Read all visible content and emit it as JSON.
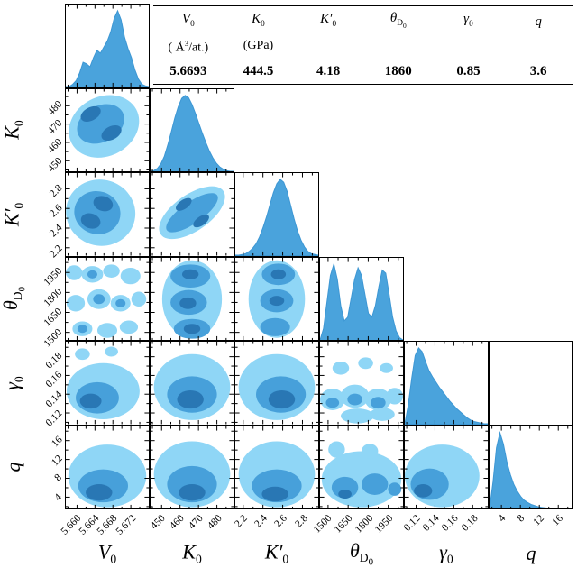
{
  "figure": {
    "background": "#ffffff",
    "frame_color": "#000000"
  },
  "table": {
    "headers": [
      {
        "html": "V<sub>0</sub>",
        "unit": "( Å<sup>3</sup>/at.)"
      },
      {
        "html": "K<sub>0</sub>",
        "unit": "(GPa)"
      },
      {
        "html": "K′<sub>0</sub>",
        "unit": ""
      },
      {
        "html": "θ<sub>D<sub>0</sub></sub>",
        "unit": ""
      },
      {
        "html": "γ<sub>0</sub>",
        "unit": ""
      },
      {
        "html": "q",
        "unit": ""
      }
    ],
    "values": [
      "5.6693",
      "444.5",
      "4.18",
      "1860",
      "0.85",
      "3.6"
    ]
  },
  "chart_data": {
    "type": "corner-plot",
    "description": "Corner plot of posterior distributions for equation-of-state parameters: 1D marginal densities on the diagonal, 2D filled density contours (3 levels) in the lower triangle, best-fit values in the top table.",
    "colors": {
      "fill": "#4aa3dc",
      "fill_edge": "#3d97d4",
      "contour_levels": [
        "#8fd6f6",
        "#47a0da",
        "#2977b4"
      ],
      "frame": "#000000"
    },
    "parameters": [
      {
        "key": "V0",
        "label": "V0",
        "label_html": "V<sub>0</sub>",
        "unit": "Å³/at.",
        "ticks": [
          5.66,
          5.664,
          5.668,
          5.672
        ],
        "tick_labels": [
          "5.660",
          "5.664",
          "5.668",
          "5.672"
        ],
        "range": [
          5.6575,
          5.676
        ],
        "best_fit": 5.6693
      },
      {
        "key": "K0",
        "label": "K0",
        "label_html": "K<sub>0</sub>",
        "unit": "GPa",
        "ticks": [
          450,
          460,
          470,
          480
        ],
        "tick_labels": [
          "450",
          "460",
          "470",
          "480"
        ],
        "range": [
          444,
          489
        ],
        "best_fit": 444.5
      },
      {
        "key": "K0p",
        "label": "K0'",
        "label_html": "K′<sub>0</sub>",
        "unit": "",
        "ticks": [
          2.2,
          2.4,
          2.6,
          2.8
        ],
        "tick_labels": [
          "2.2",
          "2.4",
          "2.6",
          "2.8"
        ],
        "range": [
          2.12,
          2.96
        ],
        "best_fit": 4.18
      },
      {
        "key": "thetaD0",
        "label": "θ_D0",
        "label_html": "θ<sub>D<sub>0</sub></sub>",
        "unit": "",
        "ticks": [
          1500,
          1650,
          1800,
          1950
        ],
        "tick_labels": [
          "1500",
          "1650",
          "1800",
          "1950"
        ],
        "range": [
          1440,
          2060
        ],
        "best_fit": 1860
      },
      {
        "key": "gamma0",
        "label": "γ0",
        "label_html": "γ<sub>0</sub>",
        "unit": "",
        "ticks": [
          0.12,
          0.14,
          0.16,
          0.18
        ],
        "tick_labels": [
          "0.12",
          "0.14",
          "0.16",
          "0.18"
        ],
        "range": [
          0.108,
          0.196
        ],
        "best_fit": 0.85
      },
      {
        "key": "q",
        "label": "q",
        "label_html": "q",
        "unit": "",
        "ticks": [
          4,
          8,
          12,
          16
        ],
        "tick_labels": [
          "4",
          "8",
          "12",
          "16"
        ],
        "range": [
          1.5,
          19
        ],
        "best_fit": 3.6
      }
    ],
    "diagonals": [
      {
        "param": "V0",
        "heights": [
          0,
          0,
          0.03,
          0.08,
          0.18,
          0.32,
          0.3,
          0.26,
          0.38,
          0.48,
          0.44,
          0.52,
          0.6,
          0.72,
          0.9,
          1.0,
          0.88,
          0.65,
          0.5,
          0.38,
          0.22,
          0.1,
          0.03,
          0.01,
          0
        ]
      },
      {
        "param": "K0",
        "heights": [
          0,
          0.01,
          0.04,
          0.1,
          0.2,
          0.35,
          0.52,
          0.7,
          0.85,
          0.96,
          1.0,
          0.97,
          0.88,
          0.76,
          0.63,
          0.5,
          0.38,
          0.27,
          0.18,
          0.11,
          0.06,
          0.03,
          0.01,
          0,
          0
        ]
      },
      {
        "param": "K0p",
        "heights": [
          0,
          0,
          0.01,
          0.02,
          0.05,
          0.09,
          0.15,
          0.24,
          0.36,
          0.5,
          0.66,
          0.82,
          0.94,
          1.0,
          0.96,
          0.84,
          0.66,
          0.48,
          0.32,
          0.2,
          0.11,
          0.05,
          0.02,
          0.01,
          0
        ]
      },
      {
        "param": "thetaD0",
        "heights": [
          0,
          0.15,
          0.5,
          0.85,
          1.0,
          0.8,
          0.45,
          0.25,
          0.3,
          0.55,
          0.8,
          0.95,
          0.85,
          0.6,
          0.35,
          0.3,
          0.45,
          0.7,
          0.92,
          0.88,
          0.6,
          0.3,
          0.12,
          0.03,
          0
        ]
      },
      {
        "param": "gamma0",
        "heights": [
          0,
          0.25,
          0.6,
          0.9,
          1.0,
          0.95,
          0.82,
          0.7,
          0.62,
          0.55,
          0.48,
          0.42,
          0.36,
          0.3,
          0.25,
          0.2,
          0.16,
          0.12,
          0.08,
          0.05,
          0.03,
          0.02,
          0.01,
          0,
          0
        ]
      },
      {
        "param": "q",
        "heights": [
          0,
          0.35,
          0.8,
          1.0,
          0.85,
          0.62,
          0.45,
          0.32,
          0.23,
          0.16,
          0.11,
          0.08,
          0.055,
          0.04,
          0.025,
          0.015,
          0.01,
          0.005,
          0,
          0,
          0,
          0,
          0,
          0,
          0
        ]
      }
    ],
    "panels": [
      {
        "row": 1,
        "col": 0,
        "blobs": [
          [
            0,
            0.46,
            0.55,
            0.44,
            0.36,
            -28
          ],
          [
            1,
            0.42,
            0.58,
            0.3,
            0.22,
            -28
          ],
          [
            2,
            0.3,
            0.7,
            0.13,
            0.08,
            -28
          ],
          [
            2,
            0.55,
            0.47,
            0.13,
            0.08,
            -28
          ]
        ]
      },
      {
        "row": 2,
        "col": 0,
        "blobs": [
          [
            0,
            0.42,
            0.52,
            0.42,
            0.4,
            18
          ],
          [
            1,
            0.38,
            0.52,
            0.28,
            0.26,
            18
          ],
          [
            2,
            0.3,
            0.42,
            0.12,
            0.09,
            18
          ],
          [
            2,
            0.45,
            0.63,
            0.12,
            0.09,
            18
          ]
        ]
      },
      {
        "row": 2,
        "col": 1,
        "blobs": [
          [
            0,
            0.5,
            0.52,
            0.46,
            0.22,
            -35
          ],
          [
            1,
            0.5,
            0.52,
            0.37,
            0.13,
            -35
          ],
          [
            2,
            0.4,
            0.62,
            0.11,
            0.055,
            -35
          ],
          [
            2,
            0.61,
            0.42,
            0.11,
            0.055,
            -35
          ]
        ]
      },
      {
        "row": 3,
        "col": 0,
        "blobs": [
          [
            0,
            0.1,
            0.82,
            0.1,
            0.09,
            0
          ],
          [
            0,
            0.32,
            0.8,
            0.13,
            0.1,
            0
          ],
          [
            0,
            0.55,
            0.84,
            0.1,
            0.08,
            0
          ],
          [
            0,
            0.78,
            0.78,
            0.12,
            0.1,
            0
          ],
          [
            0,
            0.12,
            0.45,
            0.11,
            0.1,
            0
          ],
          [
            0,
            0.4,
            0.5,
            0.14,
            0.12,
            0
          ],
          [
            0,
            0.66,
            0.45,
            0.12,
            0.1,
            0
          ],
          [
            0,
            0.88,
            0.5,
            0.09,
            0.09,
            0
          ],
          [
            0,
            0.2,
            0.14,
            0.12,
            0.09,
            0
          ],
          [
            0,
            0.5,
            0.12,
            0.12,
            0.09,
            0
          ],
          [
            0,
            0.76,
            0.16,
            0.11,
            0.08,
            0
          ],
          [
            1,
            0.32,
            0.8,
            0.06,
            0.05,
            0
          ],
          [
            1,
            0.4,
            0.5,
            0.07,
            0.06,
            0
          ],
          [
            1,
            0.66,
            0.45,
            0.06,
            0.05,
            0
          ],
          [
            1,
            0.2,
            0.14,
            0.06,
            0.05,
            0
          ]
        ]
      },
      {
        "row": 3,
        "col": 1,
        "blobs": [
          [
            0,
            0.5,
            0.5,
            0.36,
            0.47,
            0
          ],
          [
            1,
            0.48,
            0.78,
            0.24,
            0.14,
            0
          ],
          [
            1,
            0.46,
            0.46,
            0.22,
            0.15,
            0
          ],
          [
            1,
            0.5,
            0.14,
            0.22,
            0.12,
            0
          ],
          [
            2,
            0.48,
            0.8,
            0.1,
            0.06,
            0
          ],
          [
            2,
            0.45,
            0.45,
            0.1,
            0.07,
            0
          ],
          [
            2,
            0.5,
            0.14,
            0.1,
            0.06,
            0
          ]
        ]
      },
      {
        "row": 3,
        "col": 2,
        "blobs": [
          [
            0,
            0.5,
            0.5,
            0.34,
            0.47,
            0
          ],
          [
            1,
            0.52,
            0.8,
            0.2,
            0.13,
            0
          ],
          [
            1,
            0.5,
            0.48,
            0.2,
            0.14,
            0
          ],
          [
            1,
            0.48,
            0.16,
            0.18,
            0.11,
            0
          ],
          [
            2,
            0.52,
            0.8,
            0.09,
            0.06,
            0
          ],
          [
            2,
            0.5,
            0.48,
            0.09,
            0.06,
            0
          ]
        ]
      },
      {
        "row": 4,
        "col": 0,
        "blobs": [
          [
            0,
            0.45,
            0.4,
            0.44,
            0.34,
            0
          ],
          [
            0,
            0.2,
            0.85,
            0.09,
            0.07,
            0
          ],
          [
            0,
            0.55,
            0.88,
            0.08,
            0.06,
            0
          ],
          [
            1,
            0.38,
            0.32,
            0.26,
            0.19,
            0
          ],
          [
            2,
            0.3,
            0.28,
            0.13,
            0.09,
            0
          ]
        ]
      },
      {
        "row": 4,
        "col": 1,
        "blobs": [
          [
            0,
            0.5,
            0.45,
            0.46,
            0.4,
            0
          ],
          [
            1,
            0.5,
            0.36,
            0.3,
            0.22,
            0
          ],
          [
            2,
            0.48,
            0.3,
            0.16,
            0.11,
            0
          ]
        ]
      },
      {
        "row": 4,
        "col": 2,
        "blobs": [
          [
            0,
            0.5,
            0.45,
            0.46,
            0.4,
            0
          ],
          [
            1,
            0.55,
            0.36,
            0.3,
            0.22,
            0
          ],
          [
            2,
            0.56,
            0.3,
            0.16,
            0.11,
            0
          ]
        ]
      },
      {
        "row": 4,
        "col": 3,
        "blobs": [
          [
            0,
            0.15,
            0.3,
            0.15,
            0.13,
            0
          ],
          [
            0,
            0.42,
            0.34,
            0.17,
            0.14,
            0
          ],
          [
            0,
            0.7,
            0.3,
            0.16,
            0.13,
            0
          ],
          [
            0,
            0.9,
            0.34,
            0.1,
            0.1,
            0
          ],
          [
            0,
            0.25,
            0.68,
            0.1,
            0.08,
            0
          ],
          [
            0,
            0.55,
            0.74,
            0.09,
            0.07,
            0
          ],
          [
            0,
            0.8,
            0.68,
            0.08,
            0.06,
            0
          ],
          [
            0,
            0.45,
            0.1,
            0.2,
            0.09,
            0
          ],
          [
            0,
            0.75,
            0.12,
            0.15,
            0.08,
            0
          ],
          [
            1,
            0.42,
            0.3,
            0.09,
            0.07,
            0
          ],
          [
            1,
            0.7,
            0.26,
            0.09,
            0.07,
            0
          ],
          [
            1,
            0.15,
            0.26,
            0.08,
            0.06,
            0
          ]
        ]
      },
      {
        "row": 5,
        "col": 0,
        "blobs": [
          [
            0,
            0.5,
            0.4,
            0.47,
            0.38,
            0
          ],
          [
            1,
            0.45,
            0.28,
            0.3,
            0.2,
            0
          ],
          [
            2,
            0.4,
            0.2,
            0.16,
            0.1,
            0
          ]
        ]
      },
      {
        "row": 5,
        "col": 1,
        "blobs": [
          [
            0,
            0.5,
            0.42,
            0.46,
            0.4,
            0
          ],
          [
            1,
            0.5,
            0.3,
            0.3,
            0.22,
            0
          ],
          [
            2,
            0.5,
            0.2,
            0.16,
            0.1,
            0
          ]
        ]
      },
      {
        "row": 5,
        "col": 2,
        "blobs": [
          [
            0,
            0.5,
            0.42,
            0.46,
            0.4,
            0
          ],
          [
            1,
            0.5,
            0.28,
            0.3,
            0.2,
            0
          ],
          [
            2,
            0.48,
            0.18,
            0.16,
            0.09,
            0
          ]
        ]
      },
      {
        "row": 5,
        "col": 3,
        "blobs": [
          [
            0,
            0.5,
            0.36,
            0.48,
            0.34,
            0
          ],
          [
            0,
            0.2,
            0.72,
            0.1,
            0.1,
            0
          ],
          [
            0,
            0.6,
            0.7,
            0.1,
            0.09,
            0
          ],
          [
            1,
            0.3,
            0.26,
            0.16,
            0.13,
            0
          ],
          [
            1,
            0.66,
            0.3,
            0.16,
            0.13,
            0
          ],
          [
            1,
            0.9,
            0.24,
            0.08,
            0.08,
            0
          ],
          [
            2,
            0.3,
            0.18,
            0.08,
            0.055,
            0
          ]
        ]
      },
      {
        "row": 5,
        "col": 4,
        "blobs": [
          [
            0,
            0.45,
            0.4,
            0.45,
            0.38,
            0
          ],
          [
            1,
            0.3,
            0.3,
            0.23,
            0.19,
            0
          ],
          [
            2,
            0.22,
            0.22,
            0.11,
            0.08,
            0
          ]
        ]
      }
    ],
    "extra_empty_frames": [
      [
        4,
        5
      ]
    ]
  }
}
